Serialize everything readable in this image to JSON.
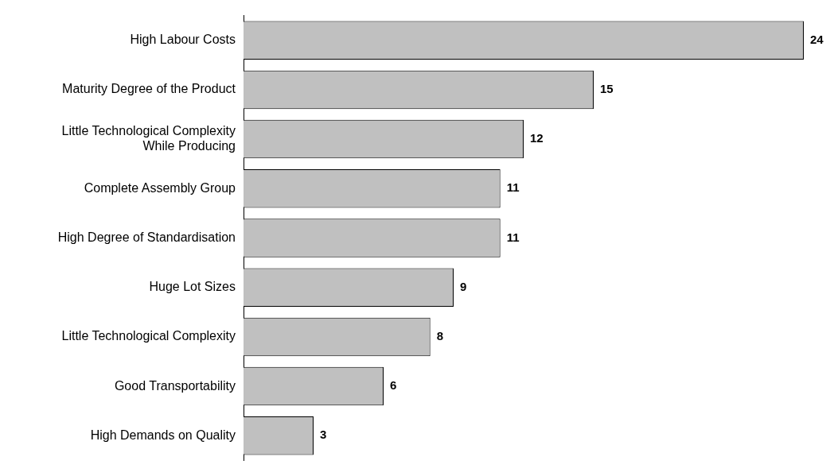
{
  "chart_data": {
    "type": "bar",
    "orientation": "horizontal",
    "categories": [
      "High Labour Costs",
      "Maturity Degree of the Product",
      "Little Technological Complexity While Producing",
      "Complete Assembly Group",
      "High Degree of Standardisation",
      "Huge Lot Sizes",
      "Little Technological Complexity",
      "Good Transportability",
      "High Demands on Quality"
    ],
    "values": [
      24,
      15,
      12,
      11,
      11,
      9,
      8,
      6,
      3
    ],
    "color": "#c0c0c0",
    "data_labels": true,
    "tick_labels": "y",
    "grid": false,
    "legend": false
  }
}
